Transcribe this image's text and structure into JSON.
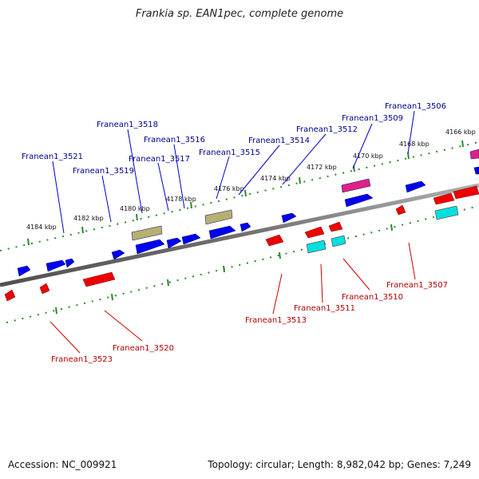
{
  "title": "Frankia sp. EAN1pec, complete genome",
  "footer": {
    "accession": "Accession: NC_009921",
    "topology": "Topology: circular; Length: 8,982,042 bp; Genes: 7,249"
  },
  "ticks": [
    "4166 kbp",
    "4168 kbp",
    "4170 kbp",
    "4172 kbp",
    "4174 kbp",
    "4176 kbp",
    "4178 kbp",
    "4180 kbp",
    "4182 kbp",
    "4184 kbp"
  ],
  "forward_labels": [
    "Franean1_3506",
    "Franean1_3509",
    "Franean1_3512",
    "Franean1_3514",
    "Franean1_3515",
    "Franean1_3516",
    "Franean1_3517",
    "Franean1_3518",
    "Franean1_3519",
    "Franean1_3521"
  ],
  "reverse_labels": [
    "Franean1_3507",
    "Franean1_3510",
    "Franean1_3511",
    "Franean1_3513",
    "Franean1_3520",
    "Franean1_3523"
  ],
  "colors": {
    "forward_gene": "#0000ee",
    "reverse_gene": "#ee0000",
    "olive_gene": "#b8b070",
    "magenta_gene": "#e0208a",
    "cyan_gene": "#00e0e0",
    "backbone": "#808080",
    "dotted_track": "#2a8a2a",
    "forward_label": "#00008b",
    "reverse_label": "#b00000"
  }
}
